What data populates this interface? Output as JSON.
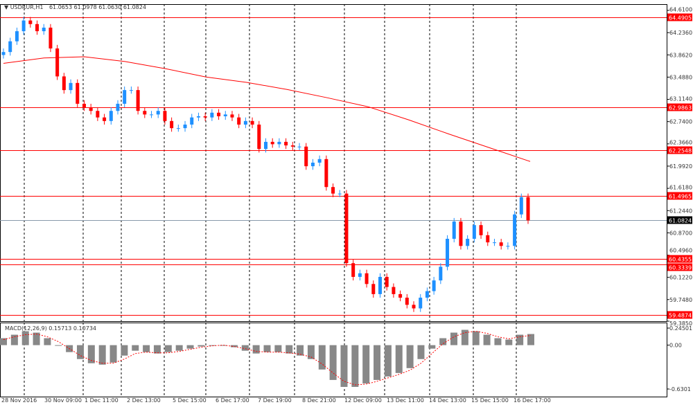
{
  "header": {
    "symbol": "USDRUR,H1",
    "ohlc": "61.0653 61.0978 61.0630 61.0824"
  },
  "macd_label": "MACD(12,26,9) 0.15713 0.10734",
  "colors": {
    "bull": "#1e90ff",
    "bear": "#ff0000",
    "ma": "#ff0000",
    "level": "#ff0000",
    "current": "#000000"
  },
  "price_axis": {
    "range": [
      59.385,
      64.61
    ],
    "ticks": [
      "64.6100",
      "64.2360",
      "63.8620",
      "63.4880",
      "63.1140",
      "62.7400",
      "62.3660",
      "61.9920",
      "61.6180",
      "61.2440",
      "60.8700",
      "60.4960",
      "60.1220",
      "59.7480",
      "59.3850"
    ]
  },
  "levels": [
    "64.4905",
    "62.9863",
    "62.2548",
    "61.4965",
    "60.4355",
    "60.3339",
    "59.4874"
  ],
  "current_price": "61.0824",
  "macd_axis": {
    "range": [
      -0.6301,
      0.24501
    ],
    "ticks": [
      "0.24501",
      "0.00",
      "-0.6301"
    ]
  },
  "time_axis": [
    "28 Nov 2016",
    "30 Nov 09:00",
    "1 Dec 11:00",
    "2 Dec 13:00",
    "5 Dec 15:00",
    "6 Dec 17:00",
    "7 Dec 19:00",
    "8 Dec 21:00",
    "12 Dec 09:00",
    "13 Dec 11:00",
    "14 Dec 13:00",
    "15 Dec 15:00",
    "16 Dec 17:00"
  ],
  "chart_data": {
    "type": "candlestick",
    "closes": [
      63.91,
      64.09,
      64.26,
      64.44,
      64.38,
      64.26,
      64.32,
      63.97,
      63.5,
      63.27,
      63.39,
      63.04,
      62.98,
      62.92,
      62.81,
      62.75,
      62.92,
      63.04,
      63.27,
      63.27,
      62.92,
      62.86,
      62.86,
      62.92,
      62.75,
      62.63,
      62.63,
      62.69,
      62.81,
      62.83,
      62.81,
      62.89,
      62.83,
      62.86,
      62.81,
      62.69,
      62.75,
      62.69,
      62.28,
      62.4,
      62.36,
      62.4,
      62.34,
      62.32,
      62.32,
      61.99,
      62.05,
      62.11,
      61.64,
      61.53,
      61.53,
      60.36,
      60.13,
      60.19,
      60.01,
      59.84,
      60.13,
      59.96,
      59.84,
      59.78,
      59.66,
      59.6,
      59.78,
      59.89,
      60.07,
      60.3,
      60.77,
      61.06,
      60.65,
      60.77,
      61.0,
      60.83,
      60.71,
      60.71,
      60.65,
      60.65,
      61.18,
      61.47,
      61.08
    ],
    "sma": [
      63.72,
      63.81,
      63.83,
      63.75,
      63.63,
      63.49,
      63.4,
      63.28,
      63.14,
      62.99,
      62.77,
      62.53,
      62.3,
      62.07
    ],
    "macd_hist": [
      0.1,
      0.15,
      0.2,
      0.18,
      0.1,
      0,
      -0.1,
      -0.2,
      -0.26,
      -0.28,
      -0.25,
      -0.15,
      -0.08,
      -0.1,
      -0.12,
      -0.1,
      -0.08,
      -0.05,
      -0.02,
      0,
      0,
      -0.03,
      -0.08,
      -0.12,
      -0.1,
      -0.1,
      -0.12,
      -0.15,
      -0.2,
      -0.35,
      -0.5,
      -0.6,
      -0.6,
      -0.55,
      -0.5,
      -0.45,
      -0.4,
      -0.33,
      -0.2,
      -0.05,
      0.1,
      0.18,
      0.22,
      0.2,
      0.15,
      0.1,
      0.08,
      0.15,
      0.16
    ],
    "macd_signal": [
      0.08,
      0.12,
      0.15,
      0.16,
      0.12,
      0.05,
      -0.05,
      -0.15,
      -0.22,
      -0.26,
      -0.26,
      -0.2,
      -0.12,
      -0.1,
      -0.11,
      -0.11,
      -0.09,
      -0.06,
      -0.03,
      -0.01,
      0,
      -0.02,
      -0.05,
      -0.09,
      -0.1,
      -0.1,
      -0.11,
      -0.13,
      -0.17,
      -0.27,
      -0.4,
      -0.52,
      -0.57,
      -0.56,
      -0.52,
      -0.47,
      -0.42,
      -0.36,
      -0.26,
      -0.12,
      0.02,
      0.12,
      0.18,
      0.2,
      0.17,
      0.12,
      0.09,
      0.12,
      0.14
    ]
  }
}
